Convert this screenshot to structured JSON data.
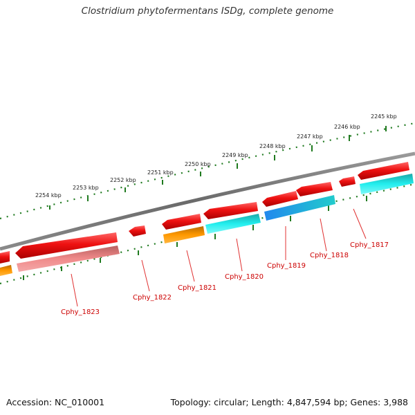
{
  "title": "Clostridium phytofermentans ISDg, complete genome",
  "footer": {
    "accession": "Accession: NC_010001",
    "summary": "Topology: circular; Length: 4,847,594 bp; Genes: 3,988"
  },
  "colors": {
    "backbone": "#7a7a7a",
    "ruler_tick": "#1f7a1f",
    "forward_gene": "#ee1111",
    "label_red": "#cc0000",
    "orange": "#ff9900",
    "cyan": "#22eeee",
    "blue": "#2299ee",
    "pink": "#e88080"
  },
  "ruler": {
    "labels": [
      "2254 kbp",
      "2253 kbp",
      "2252 kbp",
      "2251 kbp",
      "2250 kbp",
      "2249 kbp",
      "2248 kbp",
      "2247 kbp",
      "2246 kbp",
      "2245 kbp"
    ]
  },
  "genes": [
    {
      "label": "Cphy_1823",
      "category_color": "pink"
    },
    {
      "label": "Cphy_1822",
      "category_color": "none"
    },
    {
      "label": "Cphy_1821",
      "category_color": "orange"
    },
    {
      "label": "Cphy_1820",
      "category_color": "cyan"
    },
    {
      "label": "Cphy_1819",
      "category_color": "blue"
    },
    {
      "label": "Cphy_1818",
      "category_color": "cyan"
    },
    {
      "label": "Cphy_1817",
      "category_color": "cyan"
    }
  ]
}
